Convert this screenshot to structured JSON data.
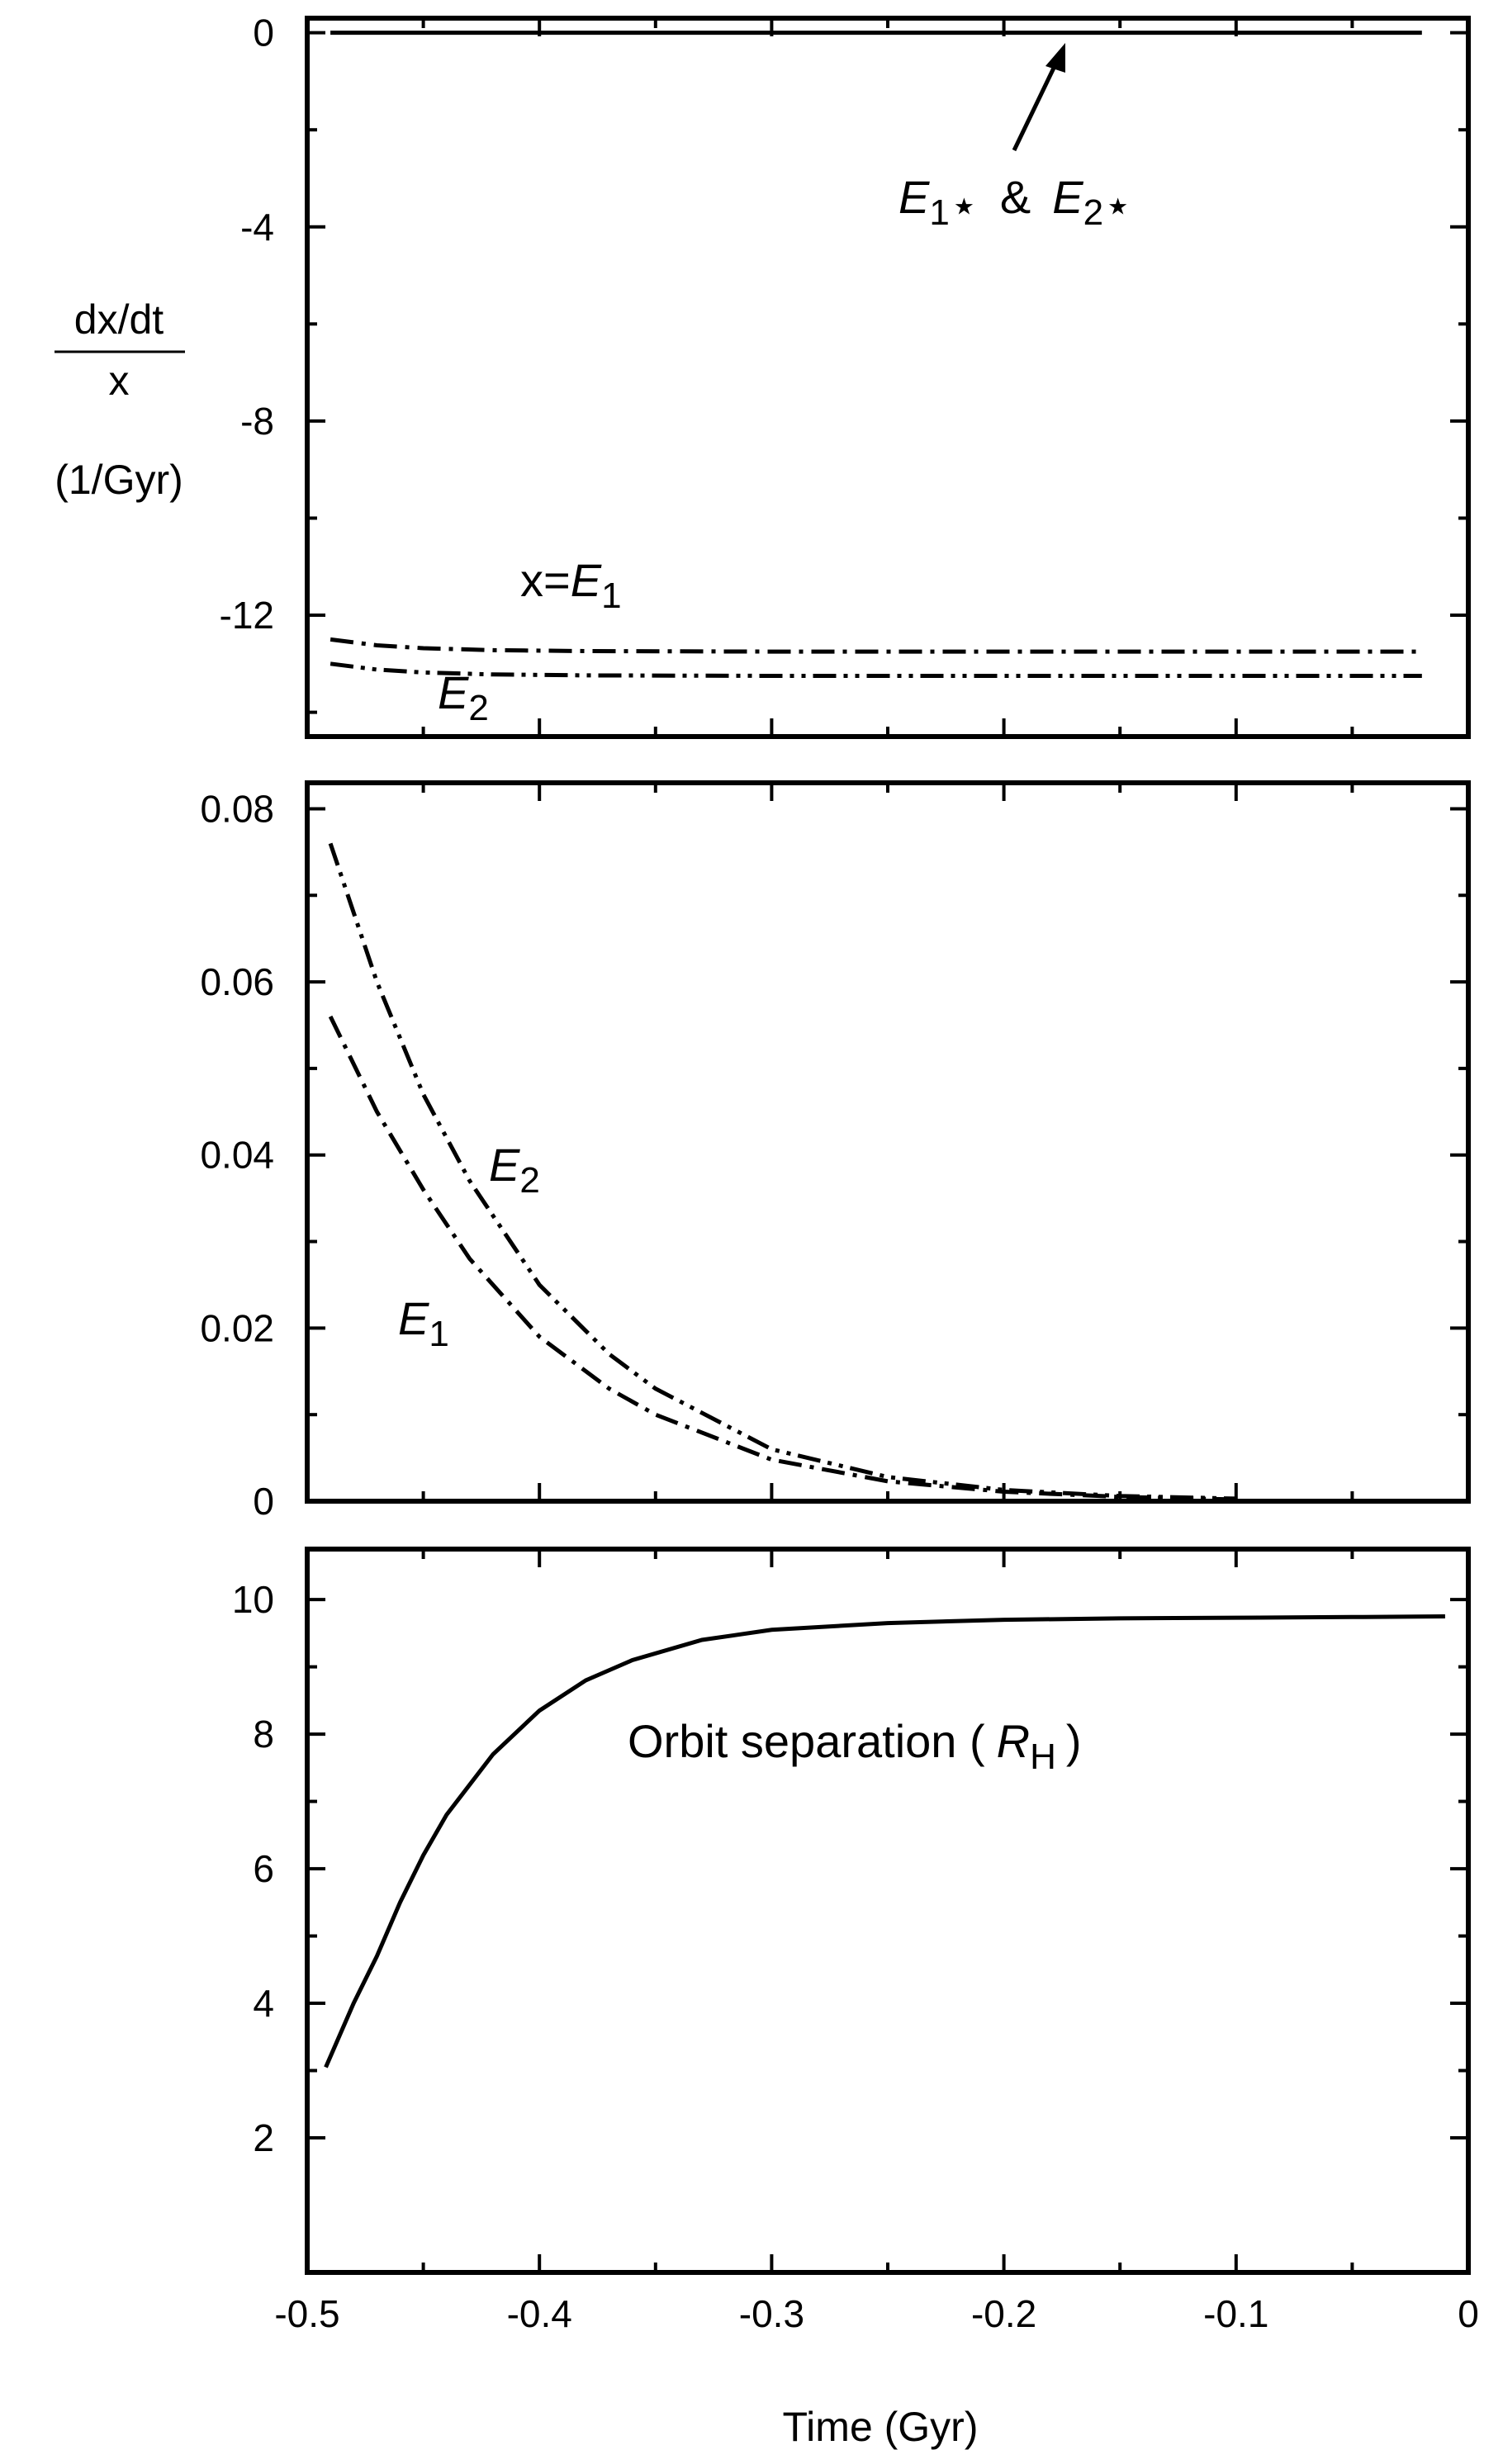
{
  "chart_data": [
    {
      "type": "line",
      "panel": "top",
      "xlim": [
        -0.5,
        0
      ],
      "ylim": [
        -14.5,
        0.3
      ],
      "yticks": [
        0,
        -4,
        -8,
        -12
      ],
      "ytick_labels": [
        "0",
        "-4",
        "-8",
        "-12"
      ],
      "ylabel_num": "dx/dt",
      "ylabel_den": "x",
      "ylabel_unit": "(1/Gyr)",
      "series": [
        {
          "name": "x=E1",
          "style": "dash-dot",
          "x": [
            -0.49,
            -0.47,
            -0.45,
            -0.42,
            -0.38,
            -0.3,
            -0.2,
            -0.1,
            -0.02
          ],
          "y": [
            -12.5,
            -12.62,
            -12.68,
            -12.72,
            -12.74,
            -12.75,
            -12.75,
            -12.75,
            -12.75
          ]
        },
        {
          "name": "E2",
          "style": "dash-dot-dot",
          "x": [
            -0.49,
            -0.47,
            -0.45,
            -0.42,
            -0.38,
            -0.3,
            -0.2,
            -0.1,
            -0.02
          ],
          "y": [
            -13.0,
            -13.12,
            -13.18,
            -13.22,
            -13.24,
            -13.25,
            -13.25,
            -13.25,
            -13.25
          ]
        },
        {
          "name": "E1* & E2*",
          "style": "solid",
          "x": [
            -0.49,
            -0.3,
            -0.02
          ],
          "y": [
            0,
            0,
            0
          ]
        }
      ],
      "annotations": {
        "e1": {
          "prefix": "x=",
          "var": "E",
          "sub": "1"
        },
        "e2": {
          "var": "E",
          "sub": "2"
        },
        "stars": {
          "var1": "E",
          "sub1": "1",
          "star": "⋆",
          "amp": "&",
          "var2": "E",
          "sub2": "2"
        }
      }
    },
    {
      "type": "line",
      "panel": "middle",
      "xlim": [
        -0.5,
        0
      ],
      "ylim": [
        0,
        0.083
      ],
      "yticks": [
        0.08,
        0.06,
        0.04,
        0.02,
        0
      ],
      "ytick_labels": [
        "0.08",
        "0.06",
        "0.04",
        "0.02",
        "0"
      ],
      "series": [
        {
          "name": "E2",
          "style": "dash-dot-dot",
          "x": [
            -0.49,
            -0.47,
            -0.45,
            -0.43,
            -0.4,
            -0.37,
            -0.35,
            -0.3,
            -0.25,
            -0.2,
            -0.15,
            -0.1
          ],
          "y": [
            0.076,
            0.06,
            0.047,
            0.037,
            0.025,
            0.017,
            0.013,
            0.006,
            0.0028,
            0.0013,
            0.0006,
            0.0003
          ]
        },
        {
          "name": "E1",
          "style": "dash-dot",
          "x": [
            -0.49,
            -0.47,
            -0.45,
            -0.43,
            -0.4,
            -0.37,
            -0.35,
            -0.3,
            -0.25,
            -0.2,
            -0.15,
            -0.1
          ],
          "y": [
            0.056,
            0.045,
            0.036,
            0.028,
            0.019,
            0.013,
            0.01,
            0.0048,
            0.0023,
            0.0011,
            0.0005,
            0.0002
          ]
        }
      ],
      "annotations": {
        "e2": {
          "var": "E",
          "sub": "2"
        },
        "e1": {
          "var": "E",
          "sub": "1"
        }
      }
    },
    {
      "type": "line",
      "panel": "bottom",
      "xlim": [
        -0.5,
        0
      ],
      "ylim": [
        0,
        10.75
      ],
      "yticks": [
        10,
        8,
        6,
        4,
        2
      ],
      "ytick_labels": [
        "10",
        "8",
        "6",
        "4",
        "2"
      ],
      "xticks": [
        -0.5,
        -0.4,
        -0.3,
        -0.2,
        -0.1,
        0
      ],
      "xtick_labels": [
        "-0.5",
        "-0.4",
        "-0.3",
        "-0.2",
        "-0.1",
        "0"
      ],
      "xlabel": "Time (Gyr)",
      "series": [
        {
          "name": "Orbit separation",
          "style": "solid",
          "x": [
            -0.492,
            -0.48,
            -0.47,
            -0.46,
            -0.45,
            -0.44,
            -0.42,
            -0.4,
            -0.38,
            -0.36,
            -0.33,
            -0.3,
            -0.25,
            -0.2,
            -0.15,
            -0.1,
            -0.05,
            -0.01
          ],
          "y": [
            3.05,
            4.0,
            4.7,
            5.5,
            6.2,
            6.8,
            7.7,
            8.35,
            8.8,
            9.1,
            9.4,
            9.55,
            9.65,
            9.7,
            9.72,
            9.73,
            9.74,
            9.75
          ]
        }
      ],
      "annotations": {
        "orbit": {
          "text": "Orbit separation (",
          "var": "R",
          "sub": "H",
          "close": ")"
        }
      }
    }
  ]
}
